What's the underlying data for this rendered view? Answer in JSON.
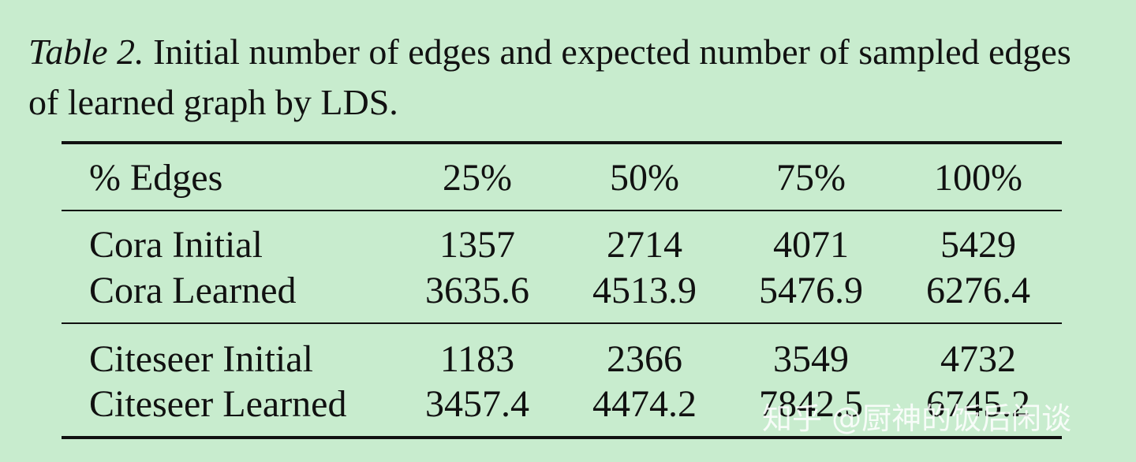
{
  "caption": {
    "label": "Table 2.",
    "text": "Initial number of edges and expected number of sampled edges of learned graph by LDS."
  },
  "table": {
    "header": [
      "% Edges",
      "25%",
      "50%",
      "75%",
      "100%"
    ],
    "rows": [
      [
        "Cora Initial",
        "1357",
        "2714",
        "4071",
        "5429"
      ],
      [
        "Cora Learned",
        "3635.6",
        "4513.9",
        "5476.9",
        "6276.4"
      ],
      [
        "Citeseer Initial",
        "1183",
        "2366",
        "3549",
        "4732"
      ],
      [
        "Citeseer Learned",
        "3457.4",
        "4474.2",
        "7842.5",
        "6745.2"
      ]
    ]
  },
  "watermark": "知乎 @厨神的饭后闲谈"
}
